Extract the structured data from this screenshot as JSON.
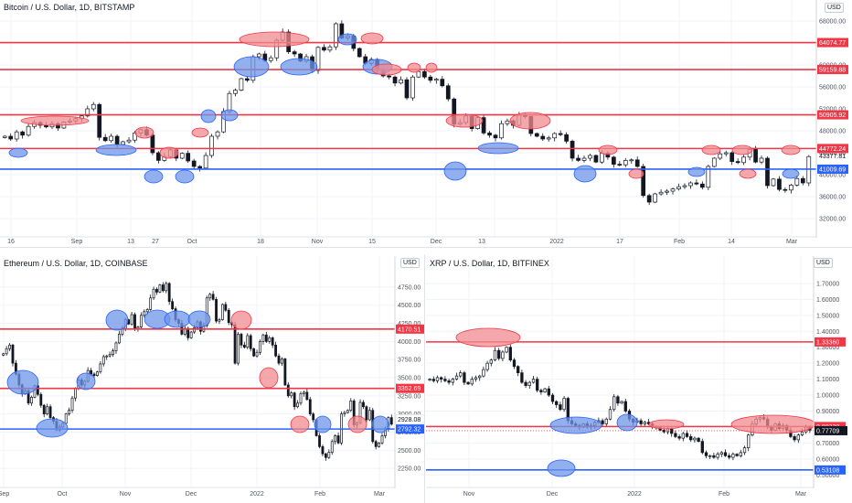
{
  "colors": {
    "red_line": "#f23645",
    "blue_line": "#2962ff",
    "up": "#131722",
    "down": "#131722",
    "red_fill": "#f28b8f",
    "blue_fill": "#6f95e8",
    "grid": "#f0f3fa"
  },
  "chart_data": [
    {
      "id": "btc",
      "type": "candlestick",
      "title": "Bitcoin / U.S. Dollar, 1D, BITSTAMP",
      "currency": "USD",
      "yticks": [
        68000,
        64000,
        60000,
        56000,
        52000,
        48000,
        44000,
        40000,
        36000,
        32000
      ],
      "ytick_labels": [
        "68000.00",
        "64000.00",
        "60000.00",
        "56000.00",
        "52000.00",
        "48000.00",
        "44000.00",
        "40000.00",
        "36000.00",
        "32000.00"
      ],
      "ylim": [
        29500,
        69500
      ],
      "xticks": [
        "16",
        "Sep",
        "13",
        "27",
        "Oct",
        "18",
        "Nov",
        "15",
        "Dec",
        "13",
        "2022",
        "17",
        "Feb",
        "14",
        "Mar"
      ],
      "levels": [
        {
          "value": 64074.77,
          "label": "64074.77",
          "color": "red"
        },
        {
          "value": 59159.88,
          "label": "59159.88",
          "color": "red"
        },
        {
          "value": 50905.92,
          "label": "50905.92",
          "color": "red"
        },
        {
          "value": 44772.24,
          "label": "44772.24",
          "color": "red"
        },
        {
          "value": 41009.69,
          "label": "41009.69",
          "color": "blue"
        }
      ],
      "last_price": {
        "value": 43377.81,
        "label": "43377.81"
      },
      "closes": [
        47000,
        46500,
        47800,
        47200,
        48800,
        49500,
        49000,
        48700,
        49300,
        48500,
        49600,
        49800,
        50200,
        50700,
        52000,
        52800,
        46800,
        46200,
        47000,
        45500,
        46000,
        46300,
        47600,
        48200,
        47200,
        44000,
        42600,
        43300,
        44500,
        43000,
        43900,
        42500,
        41500,
        41200,
        43500,
        47000,
        47800,
        51500,
        54800,
        55400,
        57500,
        57200,
        61500,
        62000,
        60800,
        61300,
        64500,
        66000,
        62400,
        62000,
        60700,
        61500,
        59000,
        63200,
        62700,
        63300,
        67500,
        64900,
        65300,
        63000,
        61500,
        60300,
        61000,
        59000,
        58000,
        57800,
        56700,
        57300,
        54000,
        57800,
        58800,
        57800,
        57200,
        57400,
        56200,
        53800,
        49200,
        49500,
        50700,
        48400,
        50400,
        47600,
        47200,
        46700,
        49300,
        49800,
        49000,
        50800,
        50600,
        47500,
        47000,
        46500,
        46700,
        47500,
        47300,
        46100,
        43000,
        42600,
        43000,
        43500,
        42300,
        43900,
        43200,
        41900,
        41800,
        42600,
        42700,
        41500,
        36200,
        35000,
        36500,
        36800,
        37000,
        37400,
        37800,
        38000,
        38500,
        38300,
        37700,
        41500,
        43000,
        43800,
        44000,
        42400,
        42200,
        43200,
        44600,
        42300,
        43000,
        38000,
        39200,
        37300,
        37200,
        38100,
        39300,
        38500,
        43300
      ]
    },
    {
      "id": "eth",
      "type": "candlestick",
      "title": "Ethereum / U.S. Dollar, 1D, COINBASE",
      "currency": "USD",
      "yticks": [
        4750,
        4500,
        4250,
        4000,
        3750,
        3500,
        3250,
        3000,
        2750,
        2500,
        2250
      ],
      "ytick_labels": [
        "4750.00",
        "4500.00",
        "4250.00",
        "4000.00",
        "3750.00",
        "3500.00",
        "3250.00",
        "3000.00",
        "2750.00",
        "2500.00",
        "2250.00"
      ],
      "ylim": [
        2050,
        4950
      ],
      "xticks": [
        "Sep",
        "Oct",
        "Nov",
        "Dec",
        "2022",
        "Feb",
        "Mar"
      ],
      "levels": [
        {
          "value": 4170.51,
          "label": "4170.51",
          "color": "red"
        },
        {
          "value": 3352.69,
          "label": "3352.69",
          "color": "red"
        },
        {
          "value": 2792.32,
          "label": "2792.32",
          "color": "blue"
        }
      ],
      "last_price": {
        "value": 2928.08,
        "label": "2928.08"
      },
      "closes": [
        3830,
        3900,
        3950,
        3700,
        3550,
        3400,
        3280,
        3320,
        3150,
        3230,
        3390,
        3270,
        3120,
        3000,
        3100,
        2950,
        2900,
        2780,
        2820,
        2870,
        3000,
        3050,
        3220,
        3350,
        3470,
        3400,
        3450,
        3600,
        3550,
        3530,
        3580,
        3690,
        3790,
        3800,
        3820,
        3870,
        3980,
        4100,
        4180,
        4300,
        4240,
        4370,
        4180,
        4200,
        4360,
        4410,
        4440,
        4600,
        4720,
        4680,
        4780,
        4700,
        4800,
        4550,
        4450,
        4300,
        4250,
        4100,
        4180,
        4050,
        4130,
        4190,
        4270,
        4140,
        4220,
        4600,
        4650,
        4580,
        4280,
        4300,
        4510,
        4430,
        4260,
        4230,
        3700,
        4100,
        3950,
        3920,
        4080,
        3900,
        3800,
        3850,
        4000,
        4090,
        4000,
        4050,
        3950,
        3800,
        3700,
        3760,
        3400,
        3250,
        3290,
        3100,
        3150,
        3280,
        3300,
        3200,
        3000,
        2920,
        2700,
        2550,
        2450,
        2400,
        2470,
        2620,
        2700,
        2600,
        3000,
        3020,
        3050,
        3180,
        2850,
        2880,
        3160,
        3100,
        2920,
        3050,
        2620,
        2550,
        2600,
        2700,
        2800,
        2950,
        2860
      ]
    },
    {
      "id": "xrp",
      "type": "candlestick",
      "title": "XRP / U.S. Dollar, 1D, BITFINEX",
      "currency": "USD",
      "yticks": [
        1.7,
        1.6,
        1.5,
        1.4,
        1.3,
        1.2,
        1.1,
        1.0,
        0.9,
        0.8,
        0.7,
        0.6,
        0.5
      ],
      "ytick_labels": [
        "1.70000",
        "1.60000",
        "1.50000",
        "1.40000",
        "1.30000",
        "1.20000",
        "1.10000",
        "1.00000",
        "0.90000",
        "0.80000",
        "0.70000",
        "0.60000",
        "0.50000"
      ],
      "ylim": [
        0.45,
        1.78
      ],
      "xticks": [
        "Nov",
        "Dec",
        "2022",
        "Feb",
        "Mar"
      ],
      "levels": [
        {
          "value": 1.3336,
          "label": "1.33360",
          "color": "red"
        },
        {
          "value": 0.8033,
          "label": "0.80330",
          "color": "red"
        },
        {
          "value": 0.53108,
          "label": "0.53108",
          "color": "blue"
        }
      ],
      "last_price": {
        "value": 0.77709,
        "label": "0.77709"
      },
      "closes": [
        1.1,
        1.09,
        1.11,
        1.1,
        1.09,
        1.08,
        1.1,
        1.12,
        1.14,
        1.08,
        1.07,
        1.1,
        1.11,
        1.12,
        1.16,
        1.2,
        1.22,
        1.28,
        1.23,
        1.27,
        1.3,
        1.22,
        1.18,
        1.14,
        1.08,
        1.06,
        1.08,
        1.1,
        1.03,
        1.02,
        1.04,
        1.0,
        0.96,
        0.94,
        0.91,
        0.98,
        0.84,
        0.82,
        0.81,
        0.8,
        0.82,
        0.8,
        0.81,
        0.83,
        0.84,
        0.82,
        0.85,
        0.91,
        0.99,
        0.95,
        0.96,
        0.9,
        0.85,
        0.83,
        0.84,
        0.82,
        0.83,
        0.82,
        0.8,
        0.8,
        0.78,
        0.77,
        0.79,
        0.76,
        0.74,
        0.73,
        0.76,
        0.74,
        0.72,
        0.73,
        0.71,
        0.64,
        0.62,
        0.62,
        0.61,
        0.63,
        0.64,
        0.62,
        0.61,
        0.63,
        0.62,
        0.64,
        0.67,
        0.75,
        0.82,
        0.85,
        0.86,
        0.85,
        0.8,
        0.78,
        0.82,
        0.79,
        0.81,
        0.78,
        0.74,
        0.72,
        0.75,
        0.77,
        0.8,
        0.78
      ]
    }
  ]
}
